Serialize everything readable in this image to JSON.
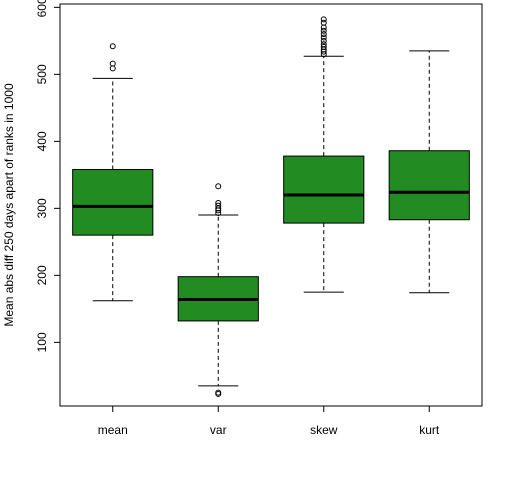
{
  "chart_data": {
    "type": "boxplot",
    "title": "",
    "xlabel": "",
    "ylabel": "Mean abs diff 250 days apart of ranks in 1000",
    "ylim": [
      5,
      605
    ],
    "yticks": [
      100,
      200,
      300,
      400,
      500,
      600
    ],
    "categories": [
      "mean",
      "var",
      "skew",
      "kurt"
    ],
    "box_color": "#228B22",
    "boxes": [
      {
        "name": "mean",
        "whisker_low": 162,
        "q1": 260,
        "median": 303,
        "q3": 358,
        "whisker_high": 494,
        "outliers": [
          509,
          516,
          542
        ]
      },
      {
        "name": "var",
        "whisker_low": 35,
        "q1": 132,
        "median": 164,
        "q3": 198,
        "whisker_high": 290,
        "outliers": [
          23,
          25,
          293,
          297,
          300,
          304,
          308,
          333
        ]
      },
      {
        "name": "skew",
        "whisker_low": 175,
        "q1": 278,
        "median": 320,
        "q3": 378,
        "whisker_high": 527,
        "outliers": [
          530,
          534,
          537,
          541,
          545,
          550,
          555,
          560,
          565,
          570,
          577,
          582
        ]
      },
      {
        "name": "kurt",
        "whisker_low": 174,
        "q1": 283,
        "median": 324,
        "q3": 386,
        "whisker_high": 535,
        "outliers": []
      }
    ]
  }
}
